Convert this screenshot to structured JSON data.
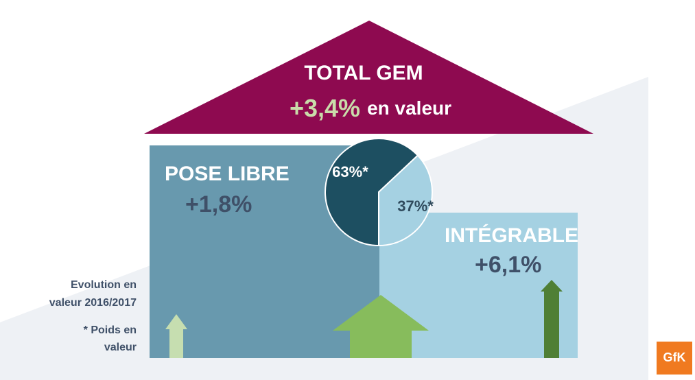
{
  "roof": {
    "title": "TOTAL GEM",
    "growth": "+3,4%",
    "growth_unit": "en valeur"
  },
  "left": {
    "title": "POSE LIBRE",
    "growth": "+1,8%"
  },
  "right": {
    "title": "INTÉGRABLE",
    "growth": "+6,1%"
  },
  "notes": {
    "evolution": [
      "Evolution en",
      "valeur 2016/2017"
    ],
    "weight": [
      "* Poids en",
      "valeur"
    ]
  },
  "logo": "GfK",
  "chart_data": {
    "type": "pie",
    "values": [
      63,
      37
    ],
    "value_labels": [
      "63%*",
      "37%*"
    ],
    "colors": [
      "#1d4f61",
      "#a5d1e2"
    ],
    "label_colors": [
      "#ffffff",
      "#2f4a5c"
    ]
  }
}
